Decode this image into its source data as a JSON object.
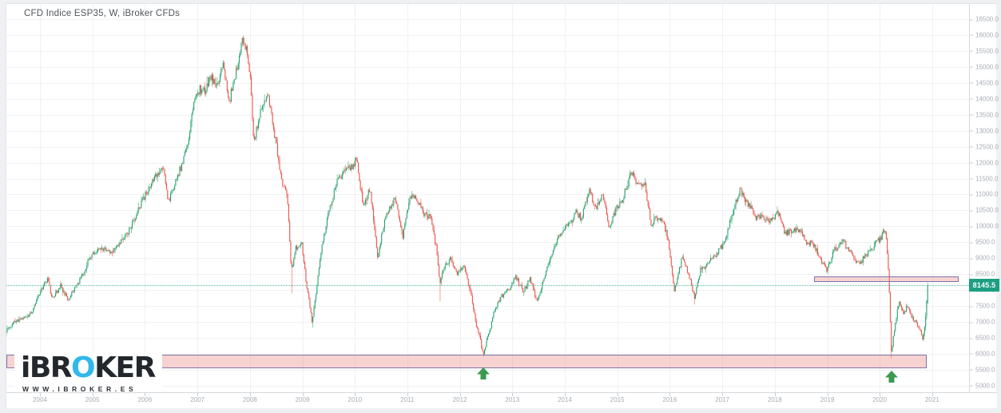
{
  "header": {
    "title": "CFD Indice ESP35, W, iBroker CFDs"
  },
  "watermark": {
    "brand_prefix": "iBR",
    "brand_o": "O",
    "brand_suffix": "KER",
    "url": "WWW.IBROKER.ES",
    "accent_color": "#31b8ec"
  },
  "chart_data": {
    "type": "candlestick",
    "title": "CFD Indice ESP35, W, iBroker CFDs",
    "symbol": "CFD Indice ESP35",
    "timeframe": "W",
    "data_provider": "iBroker CFDs",
    "current_price": 8145.5,
    "current_price_label": "8145.5",
    "grid": true,
    "legend": "none",
    "y_axis": {
      "min": 5000,
      "max": 16500,
      "step": 500,
      "tick_labels": [
        "16500.0",
        "16000.0",
        "15500.0",
        "15000.0",
        "14500.0",
        "14000.0",
        "13500.0",
        "13000.0",
        "12500.0",
        "12000.0",
        "11500.0",
        "11000.0",
        "10500.0",
        "10000.0",
        "9500.0",
        "9000.0",
        "8500.0",
        "8000.0",
        "7500.0",
        "7000.0",
        "6500.0",
        "6000.0",
        "5500.0",
        "5000.0"
      ]
    },
    "x_axis": {
      "start": 2003.24,
      "end": 2021.7,
      "tick_labels": [
        "2004",
        "2005",
        "2006",
        "2007",
        "2008",
        "2009",
        "2010",
        "2011",
        "2012",
        "2013",
        "2014",
        "2015",
        "2016",
        "2017",
        "2018",
        "2019",
        "2020",
        "2021"
      ]
    },
    "colors": {
      "up": "#26a06a",
      "down": "#e9544b",
      "grid": "#f0f1f3",
      "price_line": "#4fb5a5",
      "badge_bg": "#1d9e82",
      "zone_fill": "rgba(226,110,100,0.30)",
      "zone_border": "#7b74ad",
      "arrow": "#3a9a50"
    },
    "zones": [
      {
        "label": "support-zone",
        "t_start": 2003.24,
        "t_end": 2020.9,
        "price_top": 5975,
        "price_bottom": 5540
      },
      {
        "label": "resistance-zone",
        "t_start": 2018.75,
        "t_end": 2021.5,
        "price_top": 8440,
        "price_bottom": 8250
      }
    ],
    "markers": [
      {
        "type": "up-arrow",
        "t": 2012.45,
        "tip_price": 5580
      },
      {
        "type": "up-arrow",
        "t": 2020.23,
        "tip_price": 5480
      }
    ],
    "spike_lows": [
      {
        "t": 2008.8,
        "low": 7900
      },
      {
        "t": 2009.2,
        "low": 6820
      },
      {
        "t": 2011.63,
        "low": 7650
      },
      {
        "t": 2012.45,
        "low": 5910
      },
      {
        "t": 2016.48,
        "low": 7550
      },
      {
        "t": 2020.23,
        "low": 5860
      }
    ],
    "candles_per_year": 52,
    "noise_seed": 7,
    "price_path": [
      [
        2003.24,
        6150
      ],
      [
        2003.4,
        6800
      ],
      [
        2003.55,
        7000
      ],
      [
        2003.7,
        7100
      ],
      [
        2003.85,
        7300
      ],
      [
        2004.0,
        7900
      ],
      [
        2004.15,
        8350
      ],
      [
        2004.25,
        7700
      ],
      [
        2004.4,
        8150
      ],
      [
        2004.55,
        7680
      ],
      [
        2004.7,
        8100
      ],
      [
        2004.85,
        8600
      ],
      [
        2005.0,
        9150
      ],
      [
        2005.2,
        9300
      ],
      [
        2005.35,
        9150
      ],
      [
        2005.55,
        9500
      ],
      [
        2005.75,
        10000
      ],
      [
        2005.95,
        10750
      ],
      [
        2006.15,
        11400
      ],
      [
        2006.35,
        11900
      ],
      [
        2006.46,
        10750
      ],
      [
        2006.6,
        11400
      ],
      [
        2006.8,
        12400
      ],
      [
        2006.95,
        13900
      ],
      [
        2007.05,
        14300
      ],
      [
        2007.15,
        14200
      ],
      [
        2007.25,
        14750
      ],
      [
        2007.38,
        14400
      ],
      [
        2007.5,
        15050
      ],
      [
        2007.62,
        13950
      ],
      [
        2007.75,
        14900
      ],
      [
        2007.87,
        15900
      ],
      [
        2007.97,
        15400
      ],
      [
        2008.03,
        14500
      ],
      [
        2008.08,
        12600
      ],
      [
        2008.18,
        13400
      ],
      [
        2008.35,
        14150
      ],
      [
        2008.5,
        12700
      ],
      [
        2008.62,
        11400
      ],
      [
        2008.72,
        11000
      ],
      [
        2008.8,
        8600
      ],
      [
        2008.88,
        9300
      ],
      [
        2009.0,
        9400
      ],
      [
        2009.08,
        8300
      ],
      [
        2009.2,
        6950
      ],
      [
        2009.35,
        9100
      ],
      [
        2009.5,
        10400
      ],
      [
        2009.65,
        11300
      ],
      [
        2009.8,
        11750
      ],
      [
        2009.95,
        11850
      ],
      [
        2010.05,
        12150
      ],
      [
        2010.16,
        10650
      ],
      [
        2010.3,
        11150
      ],
      [
        2010.44,
        9050
      ],
      [
        2010.52,
        9700
      ],
      [
        2010.62,
        10450
      ],
      [
        2010.78,
        10850
      ],
      [
        2010.92,
        9650
      ],
      [
        2011.05,
        10800
      ],
      [
        2011.16,
        11000
      ],
      [
        2011.3,
        10450
      ],
      [
        2011.45,
        10250
      ],
      [
        2011.57,
        9300
      ],
      [
        2011.63,
        8250
      ],
      [
        2011.73,
        8750
      ],
      [
        2011.85,
        9000
      ],
      [
        2011.95,
        8500
      ],
      [
        2012.08,
        8800
      ],
      [
        2012.2,
        8050
      ],
      [
        2012.32,
        6950
      ],
      [
        2012.4,
        6450
      ],
      [
        2012.45,
        5980
      ],
      [
        2012.55,
        6550
      ],
      [
        2012.68,
        7450
      ],
      [
        2012.8,
        7800
      ],
      [
        2012.95,
        8050
      ],
      [
        2013.08,
        8400
      ],
      [
        2013.22,
        7950
      ],
      [
        2013.35,
        8350
      ],
      [
        2013.48,
        7600
      ],
      [
        2013.62,
        8350
      ],
      [
        2013.78,
        9250
      ],
      [
        2013.95,
        9850
      ],
      [
        2014.1,
        10050
      ],
      [
        2014.22,
        10450
      ],
      [
        2014.32,
        10250
      ],
      [
        2014.47,
        11150
      ],
      [
        2014.6,
        10550
      ],
      [
        2014.73,
        11100
      ],
      [
        2014.85,
        9850
      ],
      [
        2014.97,
        10500
      ],
      [
        2015.1,
        10800
      ],
      [
        2015.28,
        11700
      ],
      [
        2015.42,
        11250
      ],
      [
        2015.53,
        11400
      ],
      [
        2015.65,
        10050
      ],
      [
        2015.77,
        10300
      ],
      [
        2015.9,
        10100
      ],
      [
        2016.0,
        9350
      ],
      [
        2016.1,
        7950
      ],
      [
        2016.24,
        9000
      ],
      [
        2016.36,
        8550
      ],
      [
        2016.48,
        7750
      ],
      [
        2016.6,
        8650
      ],
      [
        2016.75,
        8850
      ],
      [
        2016.9,
        9150
      ],
      [
        2017.05,
        9500
      ],
      [
        2017.2,
        10400
      ],
      [
        2017.35,
        11150
      ],
      [
        2017.5,
        10700
      ],
      [
        2017.65,
        10300
      ],
      [
        2017.8,
        10300
      ],
      [
        2017.95,
        10150
      ],
      [
        2018.08,
        10450
      ],
      [
        2018.2,
        9750
      ],
      [
        2018.35,
        9900
      ],
      [
        2018.5,
        9900
      ],
      [
        2018.62,
        9500
      ],
      [
        2018.75,
        9450
      ],
      [
        2018.88,
        8950
      ],
      [
        2019.0,
        8650
      ],
      [
        2019.15,
        9250
      ],
      [
        2019.3,
        9550
      ],
      [
        2019.45,
        9200
      ],
      [
        2019.6,
        8800
      ],
      [
        2019.75,
        9100
      ],
      [
        2019.9,
        9400
      ],
      [
        2020.02,
        9600
      ],
      [
        2020.12,
        9950
      ],
      [
        2020.18,
        8500
      ],
      [
        2020.23,
        6050
      ],
      [
        2020.3,
        6900
      ],
      [
        2020.38,
        7650
      ],
      [
        2020.46,
        7300
      ],
      [
        2020.54,
        7500
      ],
      [
        2020.62,
        7150
      ],
      [
        2020.7,
        7000
      ],
      [
        2020.78,
        6800
      ],
      [
        2020.83,
        6450
      ],
      [
        2020.88,
        7100
      ],
      [
        2020.92,
        8145.5
      ]
    ]
  }
}
